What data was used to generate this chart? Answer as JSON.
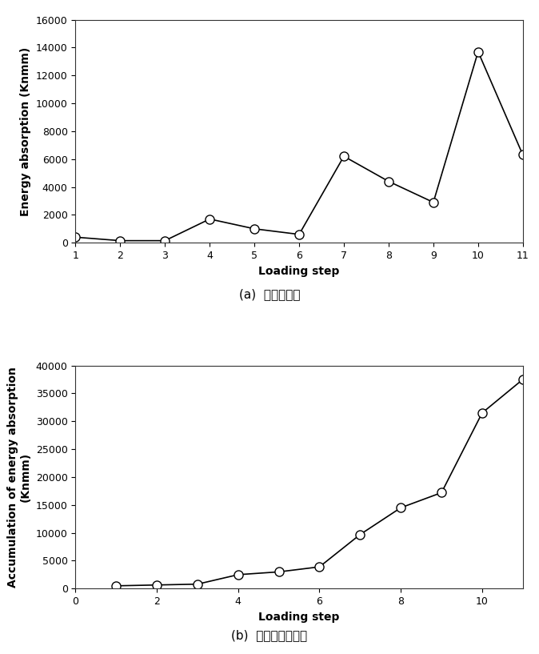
{
  "chart_a": {
    "x": [
      1,
      2,
      3,
      4,
      5,
      6,
      7,
      8,
      9,
      10,
      11
    ],
    "y": [
      400,
      150,
      150,
      1700,
      1000,
      600,
      6200,
      4400,
      2900,
      13700,
      6300
    ],
    "xlabel": "Loading step",
    "ylabel": "Energy absorption (Knmm)",
    "ylim": [
      0,
      16000
    ],
    "yticks": [
      0,
      2000,
      4000,
      6000,
      8000,
      10000,
      12000,
      14000,
      16000
    ],
    "xlim": [
      1,
      11
    ],
    "xticks": [
      1,
      2,
      3,
      4,
      5,
      6,
      7,
      8,
      9,
      10,
      11
    ],
    "caption": "(a)  흡수에너지"
  },
  "chart_b": {
    "x": [
      1,
      2,
      3,
      4,
      5,
      6,
      7,
      8,
      9,
      10,
      11
    ],
    "y": [
      500,
      650,
      800,
      2500,
      3000,
      3900,
      9700,
      14500,
      17200,
      31500,
      37500
    ],
    "xlabel": "Loading step",
    "ylabel": "Accumulation of energy absorption\n(Knmm)",
    "ylim": [
      0,
      40000
    ],
    "yticks": [
      0,
      5000,
      10000,
      15000,
      20000,
      25000,
      30000,
      35000,
      40000
    ],
    "xlim": [
      0,
      11
    ],
    "xticks": [
      0,
      2,
      4,
      6,
      8,
      10
    ],
    "caption": "(b)  누적흡수에너지"
  },
  "line_color": "#000000",
  "marker": "o",
  "marker_facecolor": "#ffffff",
  "marker_edgecolor": "#000000",
  "marker_size": 8,
  "line_width": 1.2,
  "font_size_label": 10,
  "font_size_tick": 9,
  "font_size_caption": 11,
  "bg_color": "#ffffff"
}
